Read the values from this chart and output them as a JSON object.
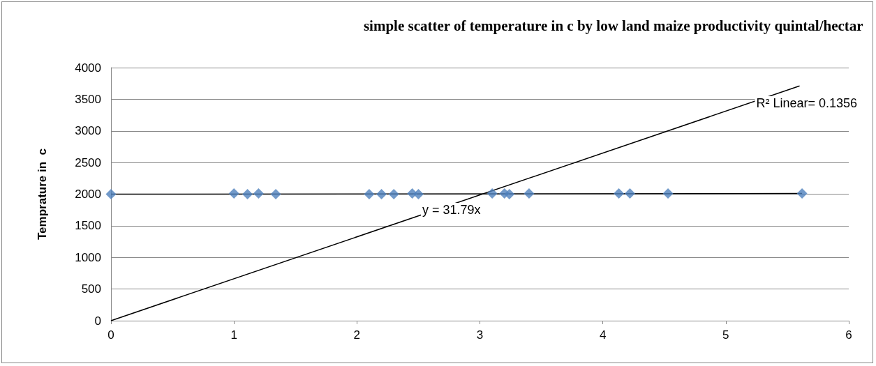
{
  "chart_data": {
    "type": "scatter",
    "title": "simple scatter of temperature in c by low land maize productivity quintal/hectar",
    "ylabel": "Temprature in  c",
    "x": [
      0,
      1.0,
      1.11,
      1.2,
      1.34,
      2.1,
      2.2,
      2.3,
      2.45,
      2.5,
      3.1,
      3.2,
      3.24,
      3.4,
      4.13,
      4.22,
      4.53,
      5.62
    ],
    "series": [
      {
        "color": "#4f81bd",
        "marker": "diamond",
        "values": [
          2000,
          2010,
          2000,
          2010,
          2000,
          2000,
          2000,
          2000,
          2010,
          2000,
          2010,
          2010,
          2000,
          2010,
          2010,
          2010,
          2010,
          2010
        ]
      },
      {
        "type": "line",
        "color": "#000000",
        "marker": "none",
        "x": [
          0,
          5.62
        ],
        "values": [
          2000,
          2010
        ]
      },
      {
        "type": "line",
        "color": "#000000",
        "marker": "none",
        "x": [
          0,
          5.6
        ],
        "values": [
          0,
          3710
        ]
      }
    ],
    "annotations": [
      "R² Linear= 0.1356",
      "y = 31.79x"
    ],
    "xlim": [
      0,
      6
    ],
    "xticks": [
      0,
      1,
      2,
      3,
      4,
      5,
      6
    ],
    "ylim": [
      0,
      4000
    ],
    "yticks": [
      0,
      500,
      1000,
      1500,
      2000,
      2500,
      3000,
      3500,
      4000
    ],
    "grid": "y"
  }
}
